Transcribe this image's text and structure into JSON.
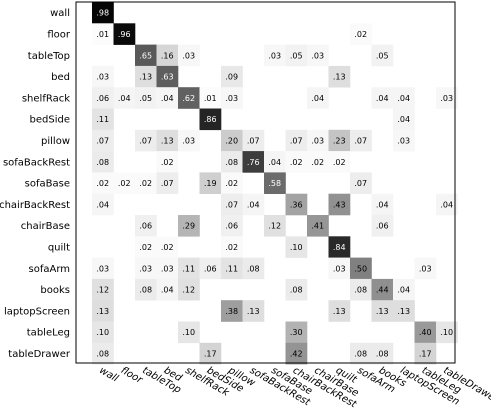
{
  "chart_data": {
    "type": "heatmap",
    "rows": [
      "wall",
      "floor",
      "tableTop",
      "bed",
      "shelfRack",
      "bedSide",
      "pillow",
      "sofaBackRest",
      "sofaBase",
      "chairBackRest",
      "chairBase",
      "quilt",
      "sofaArm",
      "books",
      "laptopScreen",
      "tableLeg",
      "tableDrawer"
    ],
    "columns": [
      "wall",
      "floor",
      "tableTop",
      "bed",
      "shelfRack",
      "bedSide",
      "pillow",
      "sofaBackRest",
      "sofaBase",
      "chairBackRest",
      "chairBase",
      "quilt",
      "sofaArm",
      "books",
      "laptopScreen",
      "tableLeg",
      "tableDrawer"
    ],
    "values": [
      [
        0.98,
        null,
        null,
        null,
        null,
        null,
        null,
        null,
        null,
        null,
        null,
        null,
        null,
        null,
        null,
        null,
        null
      ],
      [
        0.01,
        0.96,
        null,
        null,
        null,
        null,
        null,
        null,
        null,
        null,
        null,
        null,
        0.02,
        null,
        null,
        null,
        null
      ],
      [
        null,
        null,
        0.65,
        0.16,
        0.03,
        null,
        null,
        null,
        0.03,
        0.05,
        0.03,
        null,
        null,
        0.05,
        null,
        null,
        null
      ],
      [
        0.03,
        null,
        0.13,
        0.63,
        null,
        null,
        0.09,
        null,
        null,
        null,
        null,
        0.13,
        null,
        null,
        null,
        null,
        null
      ],
      [
        0.06,
        0.04,
        0.05,
        0.04,
        0.62,
        0.01,
        0.03,
        null,
        null,
        null,
        0.04,
        null,
        null,
        0.04,
        0.04,
        null,
        0.03
      ],
      [
        0.11,
        null,
        null,
        null,
        null,
        0.86,
        null,
        null,
        null,
        null,
        null,
        null,
        null,
        null,
        0.04,
        null,
        null
      ],
      [
        0.07,
        null,
        0.07,
        0.13,
        0.03,
        null,
        0.2,
        0.07,
        null,
        0.07,
        0.03,
        0.23,
        0.07,
        null,
        0.03,
        null,
        null
      ],
      [
        0.08,
        null,
        null,
        0.02,
        null,
        null,
        0.08,
        0.76,
        0.04,
        0.02,
        0.02,
        0.02,
        null,
        null,
        null,
        null,
        null
      ],
      [
        0.02,
        0.02,
        0.02,
        0.07,
        null,
        0.19,
        0.02,
        null,
        0.58,
        null,
        null,
        null,
        0.07,
        null,
        null,
        null,
        null
      ],
      [
        0.04,
        null,
        null,
        null,
        null,
        null,
        0.07,
        0.04,
        null,
        0.36,
        null,
        0.43,
        null,
        0.04,
        null,
        null,
        0.04
      ],
      [
        null,
        null,
        0.06,
        null,
        0.29,
        null,
        0.06,
        null,
        0.12,
        null,
        0.41,
        null,
        null,
        0.06,
        null,
        null,
        null
      ],
      [
        null,
        null,
        0.02,
        0.02,
        null,
        null,
        0.02,
        null,
        null,
        0.1,
        null,
        0.84,
        null,
        null,
        null,
        null,
        null
      ],
      [
        0.03,
        null,
        0.03,
        0.03,
        0.11,
        0.06,
        0.11,
        0.08,
        null,
        null,
        null,
        0.03,
        0.5,
        null,
        null,
        0.03,
        null
      ],
      [
        0.12,
        null,
        0.08,
        0.04,
        0.12,
        null,
        null,
        null,
        null,
        0.08,
        null,
        null,
        0.08,
        0.44,
        0.04,
        null,
        null
      ],
      [
        0.13,
        null,
        null,
        null,
        null,
        null,
        0.38,
        0.13,
        null,
        null,
        null,
        0.13,
        null,
        0.13,
        0.13,
        null,
        null
      ],
      [
        0.1,
        null,
        null,
        null,
        0.1,
        null,
        null,
        null,
        null,
        0.3,
        null,
        null,
        null,
        null,
        null,
        0.4,
        0.1
      ],
      [
        0.08,
        null,
        null,
        null,
        null,
        0.17,
        null,
        null,
        null,
        0.42,
        null,
        null,
        0.08,
        0.08,
        null,
        0.17,
        null
      ]
    ],
    "value_format": "two-decimal, leading zero omitted",
    "colormap": "grayscale, white (0) to black (1)",
    "grid": false,
    "legend": "none",
    "title": "",
    "xlabel": "",
    "ylabel": ""
  }
}
